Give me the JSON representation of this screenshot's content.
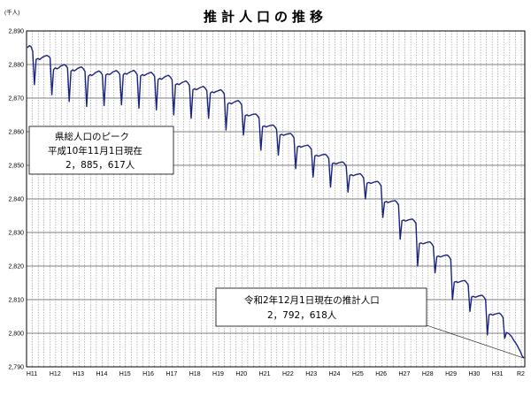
{
  "chart_data": {
    "type": "line",
    "title": "推計人口の推移",
    "y_unit": "(千人)",
    "ylim": [
      2790,
      2890
    ],
    "y_ticks": [
      "2,890",
      "2,880",
      "2,870",
      "2,860",
      "2,850",
      "2,840",
      "2,830",
      "2,820",
      "2,810",
      "2,800",
      "2,790"
    ],
    "x_ticks": [
      "H11",
      "H12",
      "H13",
      "H14",
      "H15",
      "H16",
      "H17",
      "H18",
      "H19",
      "H20",
      "H21",
      "H22",
      "H23",
      "H24",
      "H25",
      "H26",
      "H27",
      "H28",
      "H29",
      "H30",
      "H31",
      "R2"
    ],
    "grid": true,
    "line_color": "#1a237e",
    "series": [
      {
        "note": "monthly estimated population, thousands (read from chart)",
        "values": [
          2885.0,
          2885.6,
          2885.4,
          2884.0,
          2874.0,
          2881.5,
          2881.8,
          2881.5,
          2881.9,
          2882.3,
          2882.5,
          2882.7,
          2882.5,
          2882.0,
          2871.0,
          2878.5,
          2879.0,
          2878.7,
          2879.0,
          2879.5,
          2879.7,
          2880.0,
          2879.7,
          2879.0,
          2869.0,
          2878.0,
          2878.4,
          2878.1,
          2878.5,
          2878.9,
          2879.1,
          2879.3,
          2878.8,
          2878.0,
          2867.5,
          2876.5,
          2877.0,
          2876.7,
          2877.1,
          2877.6,
          2877.8,
          2878.1,
          2877.7,
          2877.0,
          2867.8,
          2876.9,
          2877.2,
          2877.0,
          2877.3,
          2877.8,
          2878.0,
          2878.2,
          2877.8,
          2877.1,
          2868.0,
          2877.0,
          2877.4,
          2877.1,
          2877.5,
          2877.8,
          2878.0,
          2878.3,
          2877.8,
          2877.0,
          2867.0,
          2876.6,
          2877.0,
          2876.7,
          2877.0,
          2877.3,
          2877.5,
          2877.7,
          2877.2,
          2876.5,
          2866.5,
          2875.5,
          2875.9,
          2875.6,
          2876.0,
          2876.4,
          2876.6,
          2876.8,
          2876.3,
          2875.5,
          2865.0,
          2874.0,
          2874.3,
          2874.0,
          2874.4,
          2874.7,
          2874.9,
          2875.1,
          2874.6,
          2873.8,
          2864.0,
          2872.5,
          2872.8,
          2872.5,
          2872.8,
          2873.1,
          2873.3,
          2873.5,
          2873.0,
          2872.2,
          2864.0,
          2871.5,
          2871.9,
          2871.6,
          2871.9,
          2872.1,
          2872.3,
          2872.5,
          2872.0,
          2871.2,
          2860.5,
          2868.3,
          2868.6,
          2868.3,
          2868.6,
          2868.9,
          2869.1,
          2869.3,
          2868.8,
          2868.0,
          2859.0,
          2864.8,
          2865.0,
          2864.7,
          2864.9,
          2865.1,
          2865.2,
          2865.3,
          2864.8,
          2864.0,
          2854.5,
          2861.5,
          2861.7,
          2861.4,
          2861.6,
          2861.8,
          2861.9,
          2862.0,
          2861.5,
          2860.7,
          2853.0,
          2859.0,
          2859.2,
          2858.9,
          2859.1,
          2859.3,
          2859.4,
          2859.5,
          2859.0,
          2858.2,
          2849.0,
          2855.5,
          2855.7,
          2855.4,
          2855.6,
          2855.8,
          2855.9,
          2856.0,
          2855.5,
          2854.7,
          2846.5,
          2852.8,
          2853.0,
          2852.7,
          2852.9,
          2853.1,
          2853.2,
          2853.3,
          2852.8,
          2852.0,
          2843.5,
          2850.5,
          2850.7,
          2850.4,
          2850.6,
          2850.8,
          2850.9,
          2851.0,
          2850.5,
          2849.7,
          2842.0,
          2847.0,
          2847.2,
          2846.9,
          2847.1,
          2847.3,
          2847.4,
          2847.5,
          2847.0,
          2846.2,
          2840.0,
          2844.7,
          2844.9,
          2844.6,
          2844.8,
          2845.0,
          2845.1,
          2845.2,
          2844.7,
          2843.9,
          2834.5,
          2839.0,
          2839.2,
          2838.9,
          2839.1,
          2839.3,
          2839.4,
          2839.5,
          2839.0,
          2838.2,
          2828.0,
          2833.5,
          2833.7,
          2833.4,
          2833.6,
          2833.8,
          2833.9,
          2834.0,
          2833.5,
          2832.7,
          2820.0,
          2826.7,
          2826.9,
          2826.6,
          2826.8,
          2827.0,
          2827.1,
          2827.2,
          2826.7,
          2825.9,
          2818.0,
          2822.8,
          2823.0,
          2822.7,
          2822.9,
          2823.1,
          2823.2,
          2823.3,
          2822.8,
          2822.0,
          2810.0,
          2815.2,
          2815.4,
          2815.1,
          2815.3,
          2815.5,
          2815.6,
          2815.7,
          2815.2,
          2814.4,
          2806.5,
          2810.8,
          2811.0,
          2810.7,
          2810.9,
          2811.1,
          2811.2,
          2811.3,
          2810.8,
          2810.0,
          2799.5,
          2805.5,
          2805.7,
          2805.4,
          2805.6,
          2805.8,
          2805.9,
          2806.0,
          2805.5,
          2804.7,
          2798.5,
          2800.2,
          2800.0,
          2799.5,
          2799.0,
          2798.0,
          2797.3,
          2796.5,
          2795.5,
          2794.5,
          2793.2,
          2792.6
        ]
      }
    ],
    "annotations": [
      {
        "lines": [
          "県総人口のピーク",
          "平成10年11月1日現在",
          "2，885，617人"
        ]
      },
      {
        "lines": [
          "令和2年12月1日現在の推計人口",
          "2，792，618人"
        ]
      }
    ]
  }
}
